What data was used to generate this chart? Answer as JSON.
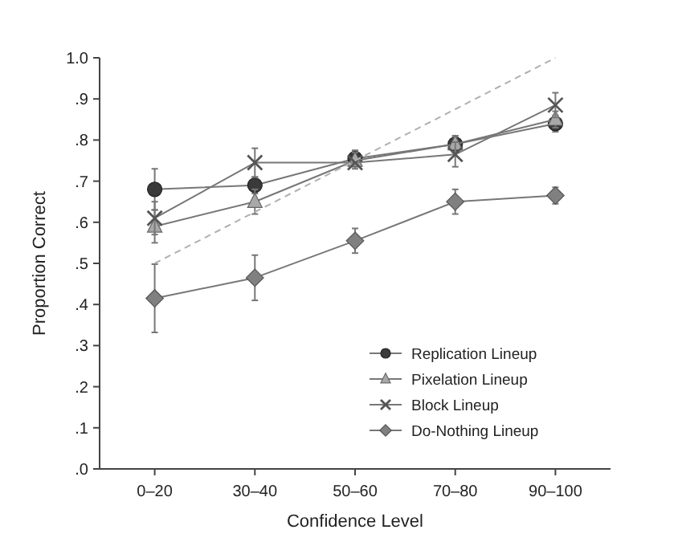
{
  "chart_data": {
    "type": "line",
    "xlabel": "Confidence Level",
    "ylabel": "Proportion Correct",
    "categories": [
      "0–20",
      "30–40",
      "50–60",
      "70–80",
      "90–100"
    ],
    "ylim": [
      0,
      1
    ],
    "yticks": [
      {
        "value": 0,
        "label": ".0"
      },
      {
        "value": 0.1,
        "label": ".1"
      },
      {
        "value": 0.2,
        "label": ".2"
      },
      {
        "value": 0.3,
        "label": ".3"
      },
      {
        "value": 0.4,
        "label": ".4"
      },
      {
        "value": 0.5,
        "label": ".5"
      },
      {
        "value": 0.6,
        "label": ".6"
      },
      {
        "value": 0.7,
        "label": ".7"
      },
      {
        "value": 0.8,
        "label": ".8"
      },
      {
        "value": 0.9,
        "label": ".9"
      },
      {
        "value": 1,
        "label": "1.0"
      }
    ],
    "legend": "bottom right",
    "grid": false,
    "series": [
      {
        "name": "Replication Lineup",
        "color": "#3a3a3a",
        "marker": "circle",
        "values": [
          0.68,
          0.69,
          0.755,
          0.79,
          0.84
        ],
        "errors": [
          0.05,
          0.02,
          0.02,
          0.02,
          0.02
        ]
      },
      {
        "name": "Pixelation Lineup",
        "color": "#a8a8a8",
        "marker": "triangle",
        "values": [
          0.59,
          0.65,
          0.75,
          0.79,
          0.85
        ],
        "errors": [
          0.04,
          0.03,
          0.02,
          0.02,
          0.02
        ]
      },
      {
        "name": "Block Lineup",
        "color": "#555555",
        "marker": "cross",
        "values": [
          0.61,
          0.745,
          0.745,
          0.765,
          0.885
        ],
        "errors": [
          0.04,
          0.035,
          null,
          0.03,
          0.03
        ]
      },
      {
        "name": "Do-Nothing Lineup",
        "color": "#808080",
        "marker": "diamond",
        "values": [
          0.415,
          0.465,
          0.555,
          0.65,
          0.665
        ],
        "errors": [
          0.083,
          0.055,
          0.03,
          0.03,
          0.02
        ]
      },
      {
        "color": "#b0b0b0",
        "marker": "none",
        "line_style": "dashed",
        "values": [
          0.5,
          0.625,
          0.75,
          0.875,
          1.0
        ]
      }
    ]
  }
}
